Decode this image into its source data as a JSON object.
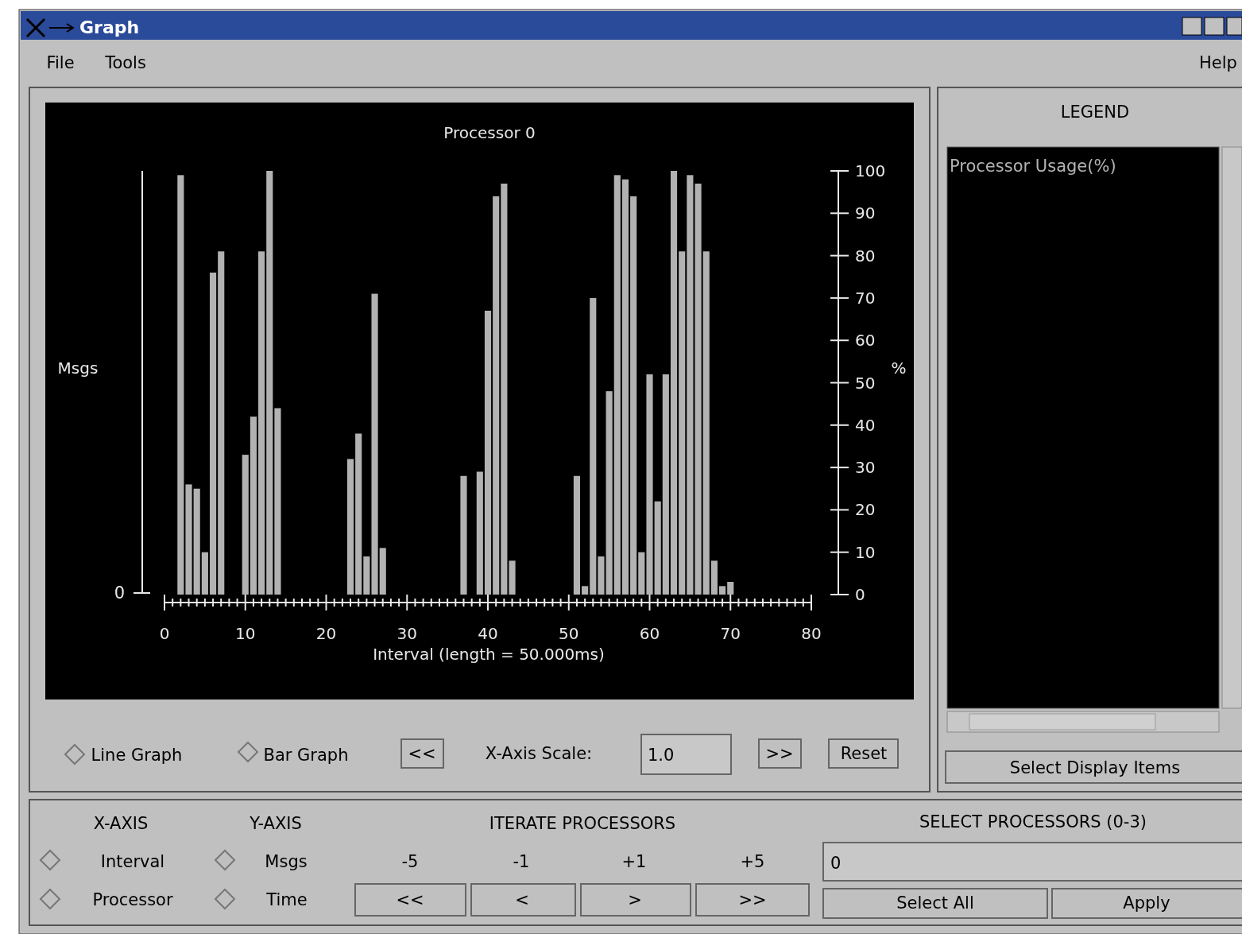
{
  "chart_data": {
    "type": "bar",
    "title": "Processor 0",
    "xlabel": "Interval (length = 50.000ms)",
    "ylabel": "Msgs",
    "y2label": "%",
    "legend_title": "LEGEND",
    "legend": "right",
    "x": [
      2,
      3,
      4,
      5,
      6,
      7,
      10,
      11,
      12,
      13,
      14,
      23,
      24,
      25,
      26,
      27,
      37,
      39,
      40,
      41,
      42,
      43,
      51,
      52,
      53,
      54,
      55,
      56,
      57,
      58,
      59,
      60,
      61,
      62,
      63,
      64,
      65,
      66,
      67,
      68,
      69,
      70
    ],
    "series": [
      {
        "name": "Processor Usage(%)",
        "color": "#b2b2b2",
        "axis": "y2",
        "values": [
          99,
          26,
          25,
          10,
          76,
          81,
          33,
          42,
          81,
          100,
          44,
          32,
          38,
          9,
          71,
          11,
          28,
          29,
          67,
          94,
          97,
          8,
          28,
          2,
          70,
          9,
          48,
          99,
          98,
          94,
          10,
          52,
          22,
          52,
          100,
          81,
          99,
          97,
          81,
          8,
          2,
          3
        ]
      }
    ],
    "xlim": [
      0,
      80
    ],
    "xticks": [
      0,
      {
        "value": 1,
        "label": null
      },
      {
        "value": 2,
        "label": null
      },
      {
        "value": 3,
        "label": null
      },
      {
        "value": 4,
        "label": null
      },
      {
        "value": 5,
        "label": null
      },
      {
        "value": 6,
        "label": null
      },
      {
        "value": 7,
        "label": null
      },
      {
        "value": 8,
        "label": null
      },
      {
        "value": 9,
        "label": null
      },
      10,
      {
        "value": 11,
        "label": null
      },
      {
        "value": 12,
        "label": null
      },
      {
        "value": 13,
        "label": null
      },
      {
        "value": 14,
        "label": null
      },
      {
        "value": 15,
        "label": null
      },
      {
        "value": 16,
        "label": null
      },
      {
        "value": 17,
        "label": null
      },
      {
        "value": 18,
        "label": null
      },
      {
        "value": 19,
        "label": null
      },
      20,
      {
        "value": 21,
        "label": null
      },
      {
        "value": 22,
        "label": null
      },
      {
        "value": 23,
        "label": null
      },
      {
        "value": 24,
        "label": null
      },
      {
        "value": 25,
        "label": null
      },
      {
        "value": 26,
        "label": null
      },
      {
        "value": 27,
        "label": null
      },
      {
        "value": 28,
        "label": null
      },
      {
        "value": 29,
        "label": null
      },
      30,
      {
        "value": 31,
        "label": null
      },
      {
        "value": 32,
        "label": null
      },
      {
        "value": 33,
        "label": null
      },
      {
        "value": 34,
        "label": null
      },
      {
        "value": 35,
        "label": null
      },
      {
        "value": 36,
        "label": null
      },
      {
        "value": 37,
        "label": null
      },
      {
        "value": 38,
        "label": null
      },
      {
        "value": 39,
        "label": null
      },
      40,
      {
        "value": 41,
        "label": null
      },
      {
        "value": 42,
        "label": null
      },
      {
        "value": 43,
        "label": null
      },
      {
        "value": 44,
        "label": null
      },
      {
        "value": 45,
        "label": null
      },
      {
        "value": 46,
        "label": null
      },
      {
        "value": 47,
        "label": null
      },
      {
        "value": 48,
        "label": null
      },
      {
        "value": 49,
        "label": null
      },
      50,
      {
        "value": 51,
        "label": null
      },
      {
        "value": 52,
        "label": null
      },
      {
        "value": 53,
        "label": null
      },
      {
        "value": 54,
        "label": null
      },
      {
        "value": 55,
        "label": null
      },
      {
        "value": 56,
        "label": null
      },
      {
        "value": 57,
        "label": null
      },
      {
        "value": 58,
        "label": null
      },
      {
        "value": 59,
        "label": null
      },
      60,
      {
        "value": 61,
        "label": null
      },
      {
        "value": 62,
        "label": null
      },
      {
        "value": 63,
        "label": null
      },
      {
        "value": 64,
        "label": null
      },
      {
        "value": 65,
        "label": null
      },
      {
        "value": 66,
        "label": null
      },
      {
        "value": 67,
        "label": null
      },
      {
        "value": 68,
        "label": null
      },
      {
        "value": 69,
        "label": null
      },
      70,
      {
        "value": 71,
        "label": null
      },
      {
        "value": 72,
        "label": null
      },
      {
        "value": 73,
        "label": null
      },
      {
        "value": 74,
        "label": null
      },
      {
        "value": 75,
        "label": null
      },
      {
        "value": 76,
        "label": null
      },
      {
        "value": 77,
        "label": null
      },
      {
        "value": 78,
        "label": null
      },
      {
        "value": 79,
        "label": null
      },
      80
    ],
    "y2lim": [
      0,
      100
    ],
    "y2ticks": [
      0,
      10,
      20,
      30,
      40,
      50,
      60,
      70,
      80,
      90,
      100
    ],
    "annotations": [
      "Graph",
      "File",
      "Tools",
      "Help",
      "Line Graph",
      "Bar Graph",
      "<<",
      "X-Axis Scale:",
      "1.0",
      ">>",
      "Reset",
      "Select Display Items",
      "X-AXIS",
      "Y-AXIS",
      "ITERATE PROCESSORS",
      "SELECT PROCESSORS (0-3)",
      "Interval",
      "Msgs",
      "-5",
      "-1",
      "+1",
      "+5",
      "Processor",
      "Time",
      "<<",
      "<",
      ">",
      ">>",
      "0",
      "Select All",
      "Apply",
      "0"
    ]
  }
}
